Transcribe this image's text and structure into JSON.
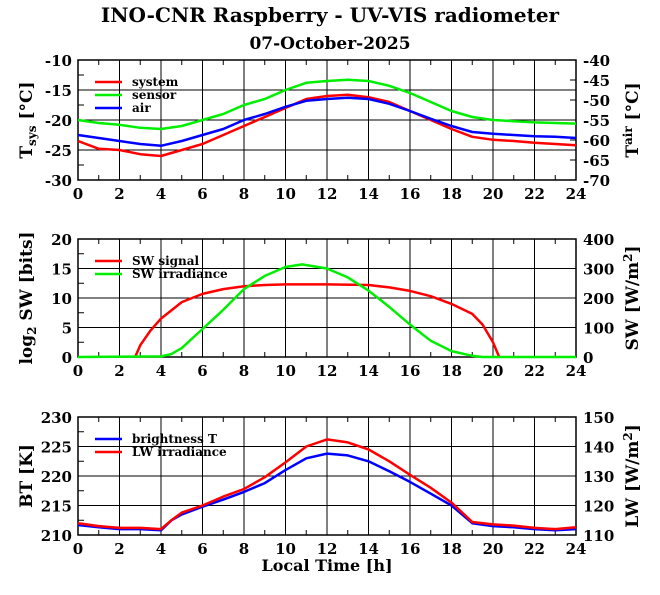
{
  "title": "INO-CNR Raspberry - UV-VIS radiometer",
  "subtitle": "07-October-2025",
  "chart_data": [
    {
      "type": "line",
      "ylabel_main": "T",
      "ylabel_sub": "sys",
      "ylabel_unit": " [°C]",
      "y2label_main": "T",
      "y2label_sub": "air",
      "y2label_unit": " [°C]",
      "xlim": [
        0,
        24
      ],
      "ylim": [
        -30,
        -10
      ],
      "y2lim": [
        -70,
        -40
      ],
      "xticks": [
        0,
        2,
        4,
        6,
        8,
        10,
        12,
        14,
        16,
        18,
        20,
        22,
        24
      ],
      "yticks": [
        -30,
        -25,
        -20,
        -15,
        -10
      ],
      "y2ticks": [
        -70,
        -65,
        -60,
        -55,
        -50,
        -45,
        -40
      ],
      "grid": true,
      "legend_position": "top-left",
      "series": [
        {
          "name": "system",
          "color": "#ff0000",
          "axis": "left",
          "x": [
            0,
            1,
            2,
            3,
            4,
            5,
            6,
            7,
            8,
            9,
            10,
            11,
            12,
            13,
            14,
            15,
            16,
            17,
            18,
            19,
            20,
            21,
            22,
            23,
            24
          ],
          "y": [
            -23.5,
            -24.8,
            -25,
            -25.7,
            -26,
            -25,
            -24,
            -22.5,
            -21,
            -19.5,
            -18,
            -16.5,
            -16,
            -15.8,
            -16.2,
            -17,
            -18.5,
            -20,
            -21.5,
            -22.8,
            -23.3,
            -23.5,
            -23.8,
            -24,
            -24.2
          ]
        },
        {
          "name": "sensor",
          "color": "#00ee00",
          "axis": "left",
          "x": [
            0,
            1,
            2,
            3,
            4,
            5,
            6,
            7,
            8,
            9,
            10,
            11,
            12,
            13,
            14,
            15,
            16,
            17,
            18,
            19,
            20,
            21,
            22,
            23,
            24
          ],
          "y": [
            -20,
            -20.5,
            -20.8,
            -21.3,
            -21.5,
            -21,
            -20,
            -19,
            -17.5,
            -16.5,
            -15,
            -13.8,
            -13.5,
            -13.3,
            -13.5,
            -14.3,
            -15.5,
            -17,
            -18.5,
            -19.5,
            -20,
            -20.2,
            -20.4,
            -20.5,
            -20.6
          ]
        },
        {
          "name": "air",
          "color": "#0000ff",
          "axis": "right",
          "x": [
            0,
            1,
            2,
            3,
            4,
            5,
            6,
            7,
            8,
            9,
            10,
            11,
            12,
            13,
            14,
            15,
            16,
            17,
            18,
            19,
            20,
            21,
            22,
            23,
            24
          ],
          "y": [
            -58.75,
            -59.5,
            -60.25,
            -61,
            -61.45,
            -60.25,
            -58.75,
            -57.25,
            -55,
            -53.5,
            -51.7,
            -50.2,
            -49.75,
            -49.45,
            -49.75,
            -50.95,
            -52.75,
            -54.7,
            -56.5,
            -58,
            -58.45,
            -58.75,
            -59.05,
            -59.2,
            -59.5
          ]
        }
      ]
    },
    {
      "type": "line",
      "ylabel_main": "log",
      "ylabel_sub": "2",
      "ylabel_unit": " SW [bits]",
      "y2label_main": "SW [W/m",
      "y2label_sub": "2",
      "y2label_unit": "]",
      "xlim": [
        0,
        24
      ],
      "ylim": [
        0,
        20
      ],
      "y2lim": [
        0,
        400
      ],
      "xticks": [
        0,
        2,
        4,
        6,
        8,
        10,
        12,
        14,
        16,
        18,
        20,
        22,
        24
      ],
      "yticks": [
        0,
        5,
        10,
        15,
        20
      ],
      "y2ticks": [
        0,
        100,
        200,
        300,
        400
      ],
      "grid": true,
      "legend_position": "top-left",
      "series": [
        {
          "name": "SW signal",
          "color": "#ff0000",
          "axis": "left",
          "x": [
            2.75,
            3,
            3.5,
            4,
            5,
            6,
            7,
            8,
            9,
            10,
            12,
            14,
            15,
            16,
            17,
            18,
            19,
            19.5,
            20,
            20.3
          ],
          "y": [
            0,
            2,
            4.5,
            6.5,
            9.3,
            10.7,
            11.5,
            12,
            12.2,
            12.3,
            12.3,
            12.2,
            11.8,
            11.2,
            10.3,
            9,
            7.3,
            5.5,
            2.5,
            0
          ]
        },
        {
          "name": "SW irradiance",
          "color": "#00ee00",
          "axis": "right",
          "x": [
            0,
            4,
            4.5,
            5,
            6,
            7,
            8,
            9,
            10,
            10.8,
            12,
            13,
            14,
            15,
            16,
            17,
            18,
            19,
            19.5,
            24
          ],
          "y": [
            0,
            2,
            10,
            30,
            95,
            160,
            230,
            275,
            305,
            314,
            300,
            270,
            225,
            170,
            110,
            55,
            20,
            4,
            0,
            0
          ]
        }
      ]
    },
    {
      "type": "line",
      "ylabel_main": "BT [K]",
      "ylabel_sub": "",
      "ylabel_unit": "",
      "y2label_main": "LW [W/m",
      "y2label_sub": "2",
      "y2label_unit": "]",
      "xlabel": "Local Time [h]",
      "xlim": [
        0,
        24
      ],
      "ylim": [
        210,
        230
      ],
      "y2lim": [
        110,
        150
      ],
      "xticks": [
        0,
        2,
        4,
        6,
        8,
        10,
        12,
        14,
        16,
        18,
        20,
        22,
        24
      ],
      "yticks": [
        210,
        215,
        220,
        225,
        230
      ],
      "y2ticks": [
        110,
        120,
        130,
        140,
        150
      ],
      "grid": true,
      "legend_position": "top-left",
      "series": [
        {
          "name": "brightness T",
          "color": "#0000ff",
          "axis": "left",
          "x": [
            0,
            1,
            2,
            3,
            4,
            4.5,
            5,
            6,
            7,
            8,
            9,
            10,
            11,
            12,
            13,
            14,
            15,
            16,
            17,
            18,
            19,
            20,
            21,
            22,
            23,
            24
          ],
          "y": [
            211.7,
            211.3,
            211,
            211,
            210.8,
            212.5,
            213.5,
            214.8,
            216,
            217.3,
            218.8,
            221,
            223,
            223.8,
            223.5,
            222.5,
            220.8,
            219,
            217,
            215,
            212,
            211.5,
            211.3,
            211,
            210.8,
            211
          ]
        },
        {
          "name": "LW irradiance",
          "color": "#ff0000",
          "axis": "right",
          "x": [
            0,
            1,
            2,
            3,
            4,
            4.5,
            5,
            6,
            7,
            8,
            9,
            10,
            11,
            12,
            13,
            14,
            15,
            16,
            17,
            18,
            19,
            20,
            21,
            22,
            23,
            24
          ],
          "y": [
            114,
            113,
            112.4,
            112.4,
            112,
            115,
            117.6,
            120,
            123,
            125.6,
            129.6,
            134.6,
            140,
            142.4,
            141.4,
            139,
            135,
            130.4,
            126,
            121,
            114.4,
            113.6,
            113.2,
            112.4,
            112,
            112.6
          ]
        }
      ]
    }
  ]
}
